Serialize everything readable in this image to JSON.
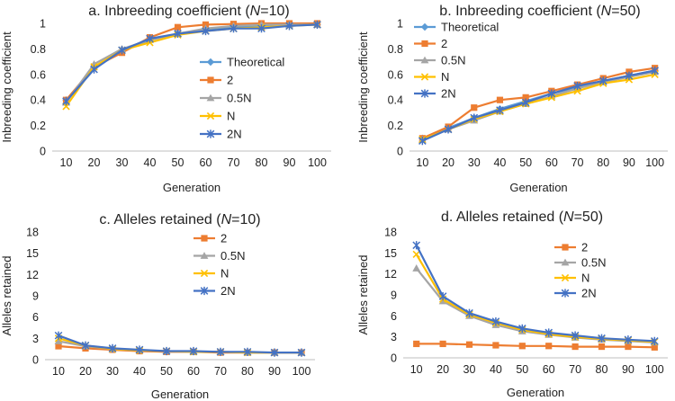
{
  "chart_data": [
    {
      "type": "line",
      "title": "a. Inbreeding coefficient (",
      "title_var": "N",
      "title_tail": "=10)",
      "xlabel": "Generation",
      "ylabel": "Inbreeding coefficient",
      "categories": [
        "10",
        "20",
        "30",
        "40",
        "50",
        "60",
        "70",
        "80",
        "90",
        "100"
      ],
      "ylim": [
        0,
        1
      ],
      "yticks": [
        "0",
        "0.2",
        "0.4",
        "0.6",
        "0.8",
        "1"
      ],
      "legend_position": "right",
      "series": [
        {
          "name": "Theoretical",
          "color": "#5b9bd5",
          "marker": "diamond",
          "values": [
            0.4,
            0.65,
            0.78,
            0.87,
            0.92,
            0.95,
            0.97,
            0.98,
            0.99,
            0.99
          ]
        },
        {
          "name": "2",
          "color": "#ed7d31",
          "marker": "square",
          "values": [
            0.4,
            0.66,
            0.77,
            0.89,
            0.97,
            0.99,
            0.995,
            1.0,
            1.0,
            1.0
          ]
        },
        {
          "name": "0.5N",
          "color": "#a5a5a5",
          "marker": "triangle",
          "values": [
            0.38,
            0.68,
            0.8,
            0.87,
            0.92,
            0.96,
            0.98,
            0.99,
            0.99,
            0.99
          ]
        },
        {
          "name": "N",
          "color": "#ffc000",
          "marker": "x",
          "values": [
            0.35,
            0.66,
            0.79,
            0.85,
            0.91,
            0.94,
            0.96,
            0.97,
            0.98,
            0.99
          ]
        },
        {
          "name": "2N",
          "color": "#4472c4",
          "marker": "star",
          "values": [
            0.39,
            0.64,
            0.79,
            0.88,
            0.92,
            0.94,
            0.96,
            0.96,
            0.98,
            0.99
          ]
        }
      ]
    },
    {
      "type": "line",
      "title": "b. Inbreeding coefficient (",
      "title_var": "N",
      "title_tail": "=50)",
      "xlabel": "Generation",
      "ylabel": "Inbreeding coefficient",
      "categories": [
        "10",
        "20",
        "30",
        "40",
        "50",
        "60",
        "70",
        "80",
        "90",
        "100"
      ],
      "ylim": [
        0,
        1
      ],
      "yticks": [
        "0",
        "0.2",
        "0.4",
        "0.6",
        "0.8",
        "1"
      ],
      "legend_position": "top-left",
      "series": [
        {
          "name": "Theoretical",
          "color": "#5b9bd5",
          "marker": "diamond",
          "values": [
            0.1,
            0.18,
            0.26,
            0.33,
            0.39,
            0.45,
            0.5,
            0.55,
            0.59,
            0.63
          ]
        },
        {
          "name": "2",
          "color": "#ed7d31",
          "marker": "square",
          "values": [
            0.1,
            0.19,
            0.34,
            0.4,
            0.42,
            0.47,
            0.52,
            0.57,
            0.62,
            0.65
          ]
        },
        {
          "name": "0.5N",
          "color": "#a5a5a5",
          "marker": "triangle",
          "values": [
            0.09,
            0.17,
            0.24,
            0.31,
            0.37,
            0.43,
            0.49,
            0.54,
            0.58,
            0.62
          ]
        },
        {
          "name": "N",
          "color": "#ffc000",
          "marker": "x",
          "values": [
            0.09,
            0.17,
            0.25,
            0.31,
            0.37,
            0.42,
            0.47,
            0.53,
            0.56,
            0.6
          ]
        },
        {
          "name": "2N",
          "color": "#4472c4",
          "marker": "star",
          "values": [
            0.08,
            0.17,
            0.26,
            0.32,
            0.38,
            0.45,
            0.51,
            0.55,
            0.59,
            0.63
          ]
        }
      ]
    },
    {
      "type": "line",
      "title": "c. Alleles retained (",
      "title_var": "N",
      "title_tail": "=10)",
      "xlabel": "Generation",
      "ylabel": "Alleles retained",
      "categories": [
        "10",
        "20",
        "30",
        "40",
        "50",
        "60",
        "70",
        "80",
        "90",
        "100"
      ],
      "ylim": [
        0,
        18
      ],
      "yticks": [
        "0",
        "3",
        "6",
        "9",
        "12",
        "15",
        "18"
      ],
      "legend_position": "right",
      "series": [
        {
          "name": "2",
          "color": "#ed7d31",
          "marker": "square",
          "values": [
            1.9,
            1.6,
            1.4,
            1.2,
            1.1,
            1.1,
            1.0,
            1.0,
            1.0,
            1.0
          ]
        },
        {
          "name": "0.5N",
          "color": "#a5a5a5",
          "marker": "triangle",
          "values": [
            2.6,
            1.9,
            1.5,
            1.3,
            1.2,
            1.1,
            1.1,
            1.0,
            1.0,
            1.0
          ]
        },
        {
          "name": "N",
          "color": "#ffc000",
          "marker": "x",
          "values": [
            3.0,
            2.0,
            1.5,
            1.3,
            1.2,
            1.1,
            1.1,
            1.0,
            1.0,
            1.0
          ]
        },
        {
          "name": "2N",
          "color": "#4472c4",
          "marker": "star",
          "values": [
            3.4,
            2.0,
            1.6,
            1.4,
            1.2,
            1.2,
            1.1,
            1.1,
            1.0,
            1.0
          ]
        }
      ]
    },
    {
      "type": "line",
      "title": "d. Alleles retained (",
      "title_var": "N",
      "title_tail": "=50)",
      "xlabel": "Generation",
      "ylabel": "Alleles retained",
      "categories": [
        "10",
        "20",
        "30",
        "40",
        "50",
        "60",
        "70",
        "80",
        "90",
        "100"
      ],
      "ylim": [
        0,
        18
      ],
      "yticks": [
        "0",
        "3",
        "6",
        "9",
        "12",
        "15",
        "18"
      ],
      "legend_position": "top-center",
      "series": [
        {
          "name": "2",
          "color": "#ed7d31",
          "marker": "square",
          "values": [
            2.0,
            2.0,
            1.9,
            1.8,
            1.7,
            1.7,
            1.6,
            1.6,
            1.6,
            1.5
          ]
        },
        {
          "name": "0.5N",
          "color": "#a5a5a5",
          "marker": "triangle",
          "values": [
            12.8,
            8.1,
            6.0,
            4.7,
            3.8,
            3.3,
            2.9,
            2.6,
            2.4,
            2.2
          ]
        },
        {
          "name": "N",
          "color": "#ffc000",
          "marker": "x",
          "values": [
            14.8,
            8.4,
            6.2,
            5.0,
            4.0,
            3.4,
            3.0,
            2.7,
            2.5,
            2.3
          ]
        },
        {
          "name": "2N",
          "color": "#4472c4",
          "marker": "star",
          "values": [
            16.1,
            8.8,
            6.4,
            5.2,
            4.2,
            3.6,
            3.2,
            2.8,
            2.6,
            2.4
          ]
        }
      ]
    }
  ]
}
